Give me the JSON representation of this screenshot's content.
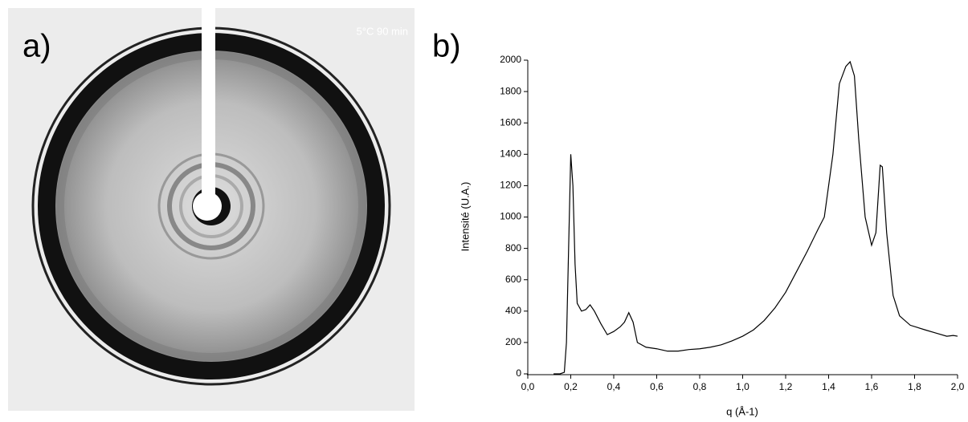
{
  "panels": {
    "a": {
      "label": "a)",
      "annotation": "5°C 90 min"
    },
    "b": {
      "label": "b)"
    }
  },
  "chart_data": {
    "type": "line",
    "xlabel": "q (Å-1)",
    "ylabel": "Intensité (U.A.)",
    "color": "#000000",
    "x": [
      0.12,
      0.15,
      0.17,
      0.18,
      0.19,
      0.2,
      0.21,
      0.22,
      0.23,
      0.25,
      0.27,
      0.29,
      0.31,
      0.34,
      0.37,
      0.4,
      0.43,
      0.45,
      0.47,
      0.49,
      0.51,
      0.55,
      0.6,
      0.65,
      0.7,
      0.75,
      0.8,
      0.85,
      0.9,
      0.95,
      1.0,
      1.05,
      1.1,
      1.15,
      1.2,
      1.25,
      1.3,
      1.35,
      1.38,
      1.42,
      1.45,
      1.48,
      1.5,
      1.52,
      1.54,
      1.57,
      1.6,
      1.62,
      1.64,
      1.65,
      1.67,
      1.7,
      1.73,
      1.78,
      1.85,
      1.9,
      1.95,
      1.98,
      2.0
    ],
    "values": [
      0,
      0,
      10,
      200,
      800,
      1400,
      1200,
      700,
      450,
      400,
      410,
      440,
      400,
      320,
      250,
      270,
      300,
      330,
      390,
      330,
      200,
      170,
      160,
      145,
      145,
      155,
      160,
      170,
      185,
      210,
      240,
      280,
      340,
      420,
      520,
      650,
      780,
      920,
      1000,
      1400,
      1850,
      1960,
      1990,
      1900,
      1500,
      1000,
      820,
      900,
      1330,
      1320,
      900,
      500,
      370,
      310,
      280,
      260,
      240,
      245,
      240
    ],
    "xlim": [
      0,
      2.0
    ],
    "ylim": [
      0,
      2000
    ],
    "xticks": [
      {
        "value": 0,
        "label": "0,0"
      },
      {
        "value": 0.2,
        "label": "0,2"
      },
      {
        "value": 0.4,
        "label": "0,4"
      },
      {
        "value": 0.6,
        "label": "0,6"
      },
      {
        "value": 0.8,
        "label": "0,8"
      },
      {
        "value": 1.0,
        "label": "1,0"
      },
      {
        "value": 1.2,
        "label": "1,2"
      },
      {
        "value": 1.4,
        "label": "1,4"
      },
      {
        "value": 1.6,
        "label": "1,6"
      },
      {
        "value": 1.8,
        "label": "1,8"
      },
      {
        "value": 2.0,
        "label": "2,0"
      }
    ],
    "yticks": [
      0,
      200,
      400,
      600,
      800,
      1000,
      1200,
      1400,
      1600,
      1800,
      2000
    ],
    "grid": false
  }
}
